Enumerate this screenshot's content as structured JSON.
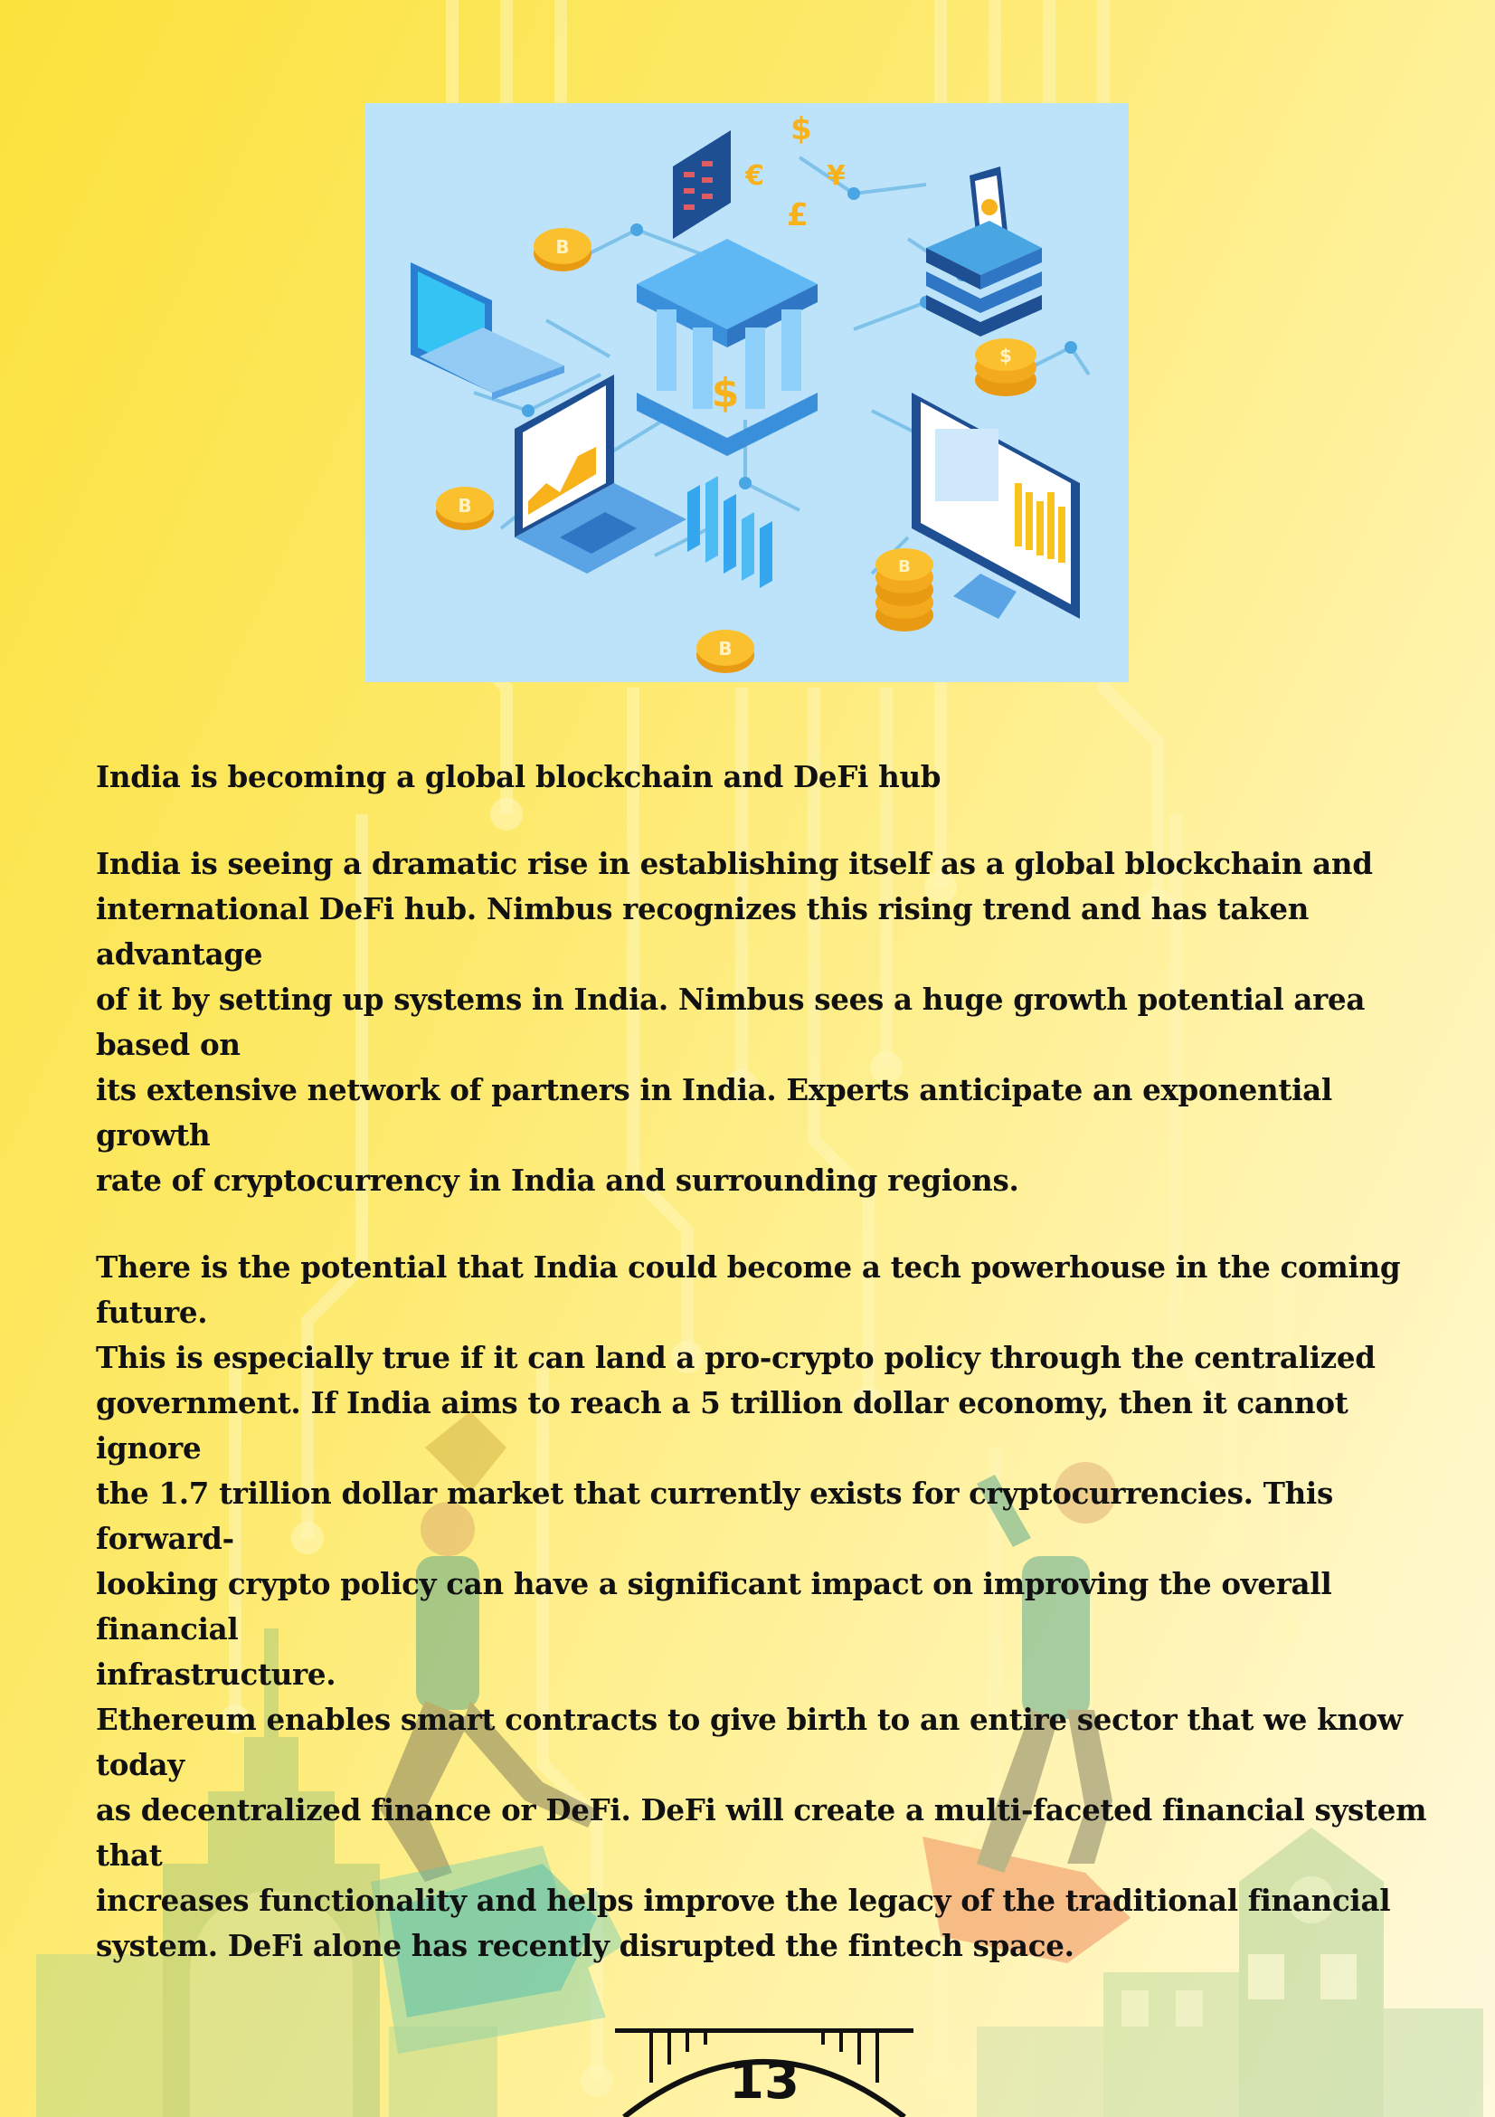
{
  "article": {
    "heading": "India is becoming a global blockchain and DeFi hub",
    "paragraph_1": "India is seeing a dramatic rise in establishing itself as a global blockchain and\ninternational DeFi hub. Nimbus recognizes this rising trend and has taken advantage\nof it by setting up systems in India. Nimbus sees a huge growth potential area based on\nits extensive network of partners in India. Experts anticipate an exponential growth\nrate of cryptocurrency in India and surrounding regions.",
    "paragraph_2": "There is the potential that India could become a tech powerhouse in the coming future.\nThis is especially true if it can land a pro-crypto policy through the centralized\ngovernment. If India aims to reach a 5 trillion dollar economy, then it cannot ignore\nthe 1.7 trillion dollar market that currently exists for cryptocurrencies. This forward-\nlooking crypto policy can have a significant impact on improving the overall financial\ninfrastructure.",
    "paragraph_3": "Ethereum enables smart contracts to give birth to an entire sector that we know today\nas decentralized finance or DeFi. DeFi will create a multi-faceted financial system that\nincreases functionality and helps improve the legacy of the traditional financial\nsystem. DeFi alone has recently disrupted the fintech space."
  },
  "page": {
    "number": "13"
  },
  "colors": {
    "page_yellow": "#fbe23c",
    "hero_background": "#bde3fb",
    "text": "#111111"
  },
  "icons": [
    "bank-icon",
    "laptop-icon",
    "monitor-icon",
    "phone-icon",
    "bitcoin-coin-icon",
    "dollar-coin-icon",
    "currency-exchange-icon",
    "bar-chart-icon",
    "server-stack-icon",
    "bridge-icon"
  ]
}
